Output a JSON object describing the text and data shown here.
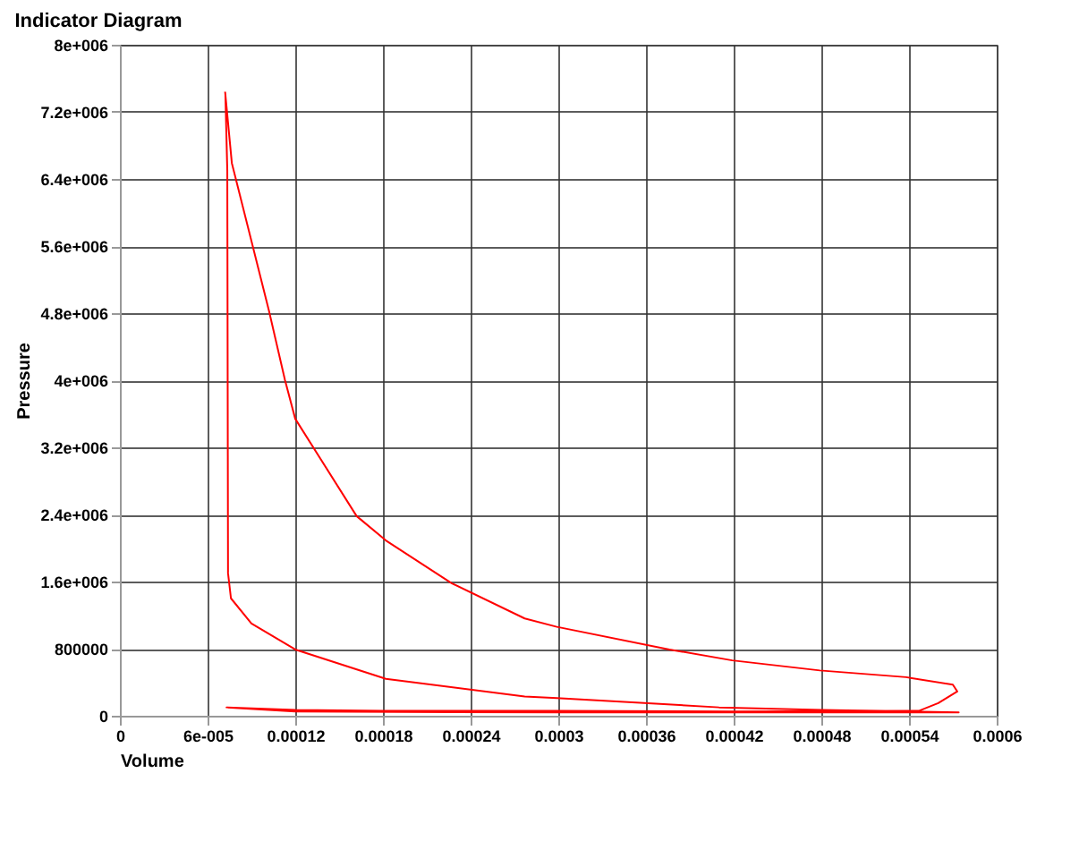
{
  "chart_data": {
    "type": "line",
    "title": "Indicator Diagram",
    "xlabel": "Volume",
    "ylabel": "Pressure",
    "xlim": [
      0,
      0.0006
    ],
    "ylim": [
      0,
      8000000
    ],
    "xticks": [
      0,
      {
        "value": 6e-05,
        "label": "6e-005"
      },
      0.00012,
      0.00018,
      0.00024,
      0.0003,
      0.00036,
      0.00042,
      0.00048,
      0.00054,
      0.0006
    ],
    "yticks": [
      0,
      800000,
      {
        "value": 1600000,
        "label": "1.6e+006"
      },
      {
        "value": 2400000,
        "label": "2.4e+006"
      },
      {
        "value": 3200000,
        "label": "3.2e+006"
      },
      {
        "value": 4000000,
        "label": "4e+006"
      },
      {
        "value": 4800000,
        "label": "4.8e+006"
      },
      {
        "value": 5600000,
        "label": "5.6e+006"
      },
      {
        "value": 6400000,
        "label": "6.4e+006"
      },
      {
        "value": 7200000,
        "label": "7.2e+006"
      },
      {
        "value": 8000000,
        "label": "8e+006"
      }
    ],
    "grid": true,
    "marker": "none",
    "line_style": "solid",
    "series": [
      {
        "color": "#ff0000",
        "x": [
          7.2e-05,
          7.66e-05,
          0.000102,
          0.000113,
          0.00012,
          0.000162,
          0.000182,
          0.000227,
          0.000277,
          0.000299,
          0.000376,
          0.000419,
          0.000479,
          0.000538,
          0.00057,
          0.000573,
          0.00056,
          0.000547,
          0.00042,
          0.0003,
          0.00018,
          0.00012,
          7.3e-05,
          0.00012,
          0.0003,
          0.000574,
          0.00048,
          0.00041,
          0.000299,
          0.000277,
          0.000182,
          0.00012,
          9e-05,
          7.6e-05,
          7.4e-05,
          7.35e-05,
          7.22e-05
        ],
        "values": [
          7440000,
          6590000,
          4830000,
          4000000,
          3540000,
          2380000,
          2090000,
          1580000,
          1160000,
          1060000,
          790000,
          660000,
          540000,
          460000,
          370000,
          290000,
          150000,
          60000,
          50000,
          60000,
          60000,
          70000,
          100000,
          50000,
          40000,
          40000,
          70000,
          100000,
          210000,
          230000,
          440000,
          790000,
          1100000,
          1400000,
          1700000,
          6500000,
          7400000
        ]
      }
    ]
  }
}
